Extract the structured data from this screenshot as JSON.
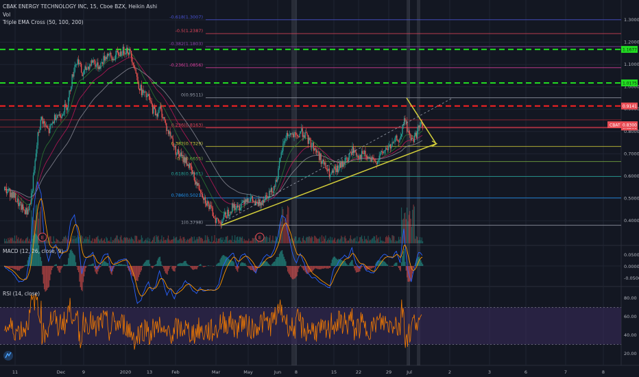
{
  "header": {
    "symbol": "CBAK ENERGY TECHNOLOGY INC, 15, Cboe BZX, Heikin Ashi",
    "vol_label": "Vol",
    "ema_label": "Triple EMA Cross (50, 100, 200)"
  },
  "colors": {
    "background": "#131722",
    "grid": "#1f2433",
    "up": "#26a69a",
    "down": "#ef5350",
    "price_tag": "#e84d55",
    "green_level": "#22dd22",
    "red_level": "#ff2222",
    "trend": "#d4cf3a",
    "macd_line": "#2962ff",
    "signal_line": "#ff9800",
    "rsi_line": "#f57c00",
    "rsi_band": "#3b2b5c"
  },
  "price_axis": {
    "ticks": [
      "1.3000",
      "1.2000",
      "1.1000",
      "1.0000",
      "0.9000",
      "0.8000",
      "0.7000",
      "0.6000",
      "0.5000",
      "0.4000"
    ],
    "current_tag": {
      "label": "CBAT",
      "value": "0.8300"
    },
    "level_tags": [
      {
        "value": "1.1677",
        "kind": "green"
      },
      {
        "value": "1.0175",
        "kind": "green"
      },
      {
        "value": "0.9141",
        "kind": "red"
      },
      {
        "value": "0.8200",
        "kind": "red"
      }
    ]
  },
  "fib_levels": [
    {
      "label": "-0.618(1.3007)",
      "color": "#4a54d6"
    },
    {
      "label": "-0.5(1.2387)",
      "color": "#e0455a"
    },
    {
      "label": "-0.382(1.1803)",
      "color": "#8e44ad"
    },
    {
      "label": "-0.236(1.0856)",
      "color": "#e040a0"
    },
    {
      "label": "0(0.9511)",
      "color": "#9aa0ac"
    },
    {
      "label": "0.236(0.8163)",
      "color": "#e0455a"
    },
    {
      "label": "0.382(0.7329)",
      "color": "#d4cf3a"
    },
    {
      "label": "0.5(0.6655)",
      "color": "#7cb342"
    },
    {
      "label": "0.618(0.5981)",
      "color": "#26a69a"
    },
    {
      "label": "0.786(0.5021)",
      "color": "#2196f3"
    },
    {
      "label": "1(0.3798)",
      "color": "#9aa0ac"
    }
  ],
  "earnings_markers": [
    "E",
    "E"
  ],
  "macd": {
    "label": "MACD (12, 26, close, 9)",
    "ticks": [
      "0.0500",
      "0.0000",
      "-0.0500"
    ]
  },
  "rsi": {
    "label": "RSI (14, close)",
    "ticks": [
      "80.00",
      "60.00",
      "40.00",
      "20.00"
    ]
  },
  "time_axis": {
    "labels": [
      "11",
      "Dec",
      "9",
      "2020",
      "13",
      "Feb",
      "Mar",
      "May",
      "Jun",
      "8",
      "15",
      "22",
      "29",
      "Jul",
      "2",
      "3",
      "6",
      "7",
      "8"
    ]
  },
  "chart_data": {
    "type": "candlestick",
    "title": "CBAK ENERGY TECHNOLOGY INC, 15, Cboe BZX, Heikin Ashi",
    "ylim": [
      0.36,
      1.33
    ],
    "price_path": [
      [
        0,
        0.54
      ],
      [
        1,
        0.53
      ],
      [
        2,
        0.52
      ],
      [
        3,
        0.5
      ],
      [
        4,
        0.47
      ],
      [
        5,
        0.45
      ],
      [
        6,
        0.44
      ],
      [
        7,
        0.48
      ],
      [
        8,
        0.62
      ],
      [
        9,
        0.78
      ],
      [
        10,
        0.86
      ],
      [
        11,
        0.82
      ],
      [
        12,
        0.8
      ],
      [
        13,
        0.84
      ],
      [
        14,
        0.88
      ],
      [
        15,
        0.87
      ],
      [
        16,
        0.9
      ],
      [
        17,
        0.92
      ],
      [
        18,
        1.02
      ],
      [
        19,
        1.1
      ],
      [
        20,
        1.12
      ],
      [
        21,
        1.05
      ],
      [
        22,
        1.08
      ],
      [
        23,
        1.1
      ],
      [
        24,
        1.12
      ],
      [
        25,
        1.09
      ],
      [
        26,
        1.1
      ],
      [
        27,
        1.13
      ],
      [
        28,
        1.15
      ],
      [
        29,
        1.12
      ],
      [
        30,
        1.14
      ],
      [
        31,
        1.15
      ],
      [
        32,
        1.16
      ],
      [
        33,
        1.17
      ],
      [
        34,
        1.15
      ],
      [
        35,
        1.1
      ],
      [
        36,
        1.02
      ],
      [
        37,
        0.98
      ],
      [
        38,
        0.96
      ],
      [
        39,
        0.95
      ],
      [
        40,
        0.9
      ],
      [
        41,
        0.88
      ],
      [
        42,
        0.9
      ],
      [
        43,
        0.86
      ],
      [
        44,
        0.8
      ],
      [
        45,
        0.78
      ],
      [
        46,
        0.72
      ],
      [
        47,
        0.7
      ],
      [
        48,
        0.68
      ],
      [
        49,
        0.67
      ],
      [
        50,
        0.64
      ],
      [
        51,
        0.6
      ],
      [
        52,
        0.56
      ],
      [
        53,
        0.54
      ],
      [
        54,
        0.5
      ],
      [
        55,
        0.47
      ],
      [
        56,
        0.44
      ],
      [
        57,
        0.41
      ],
      [
        58,
        0.39
      ],
      [
        59,
        0.41
      ],
      [
        60,
        0.43
      ],
      [
        61,
        0.45
      ],
      [
        62,
        0.47
      ],
      [
        63,
        0.45
      ],
      [
        64,
        0.48
      ],
      [
        65,
        0.5
      ],
      [
        66,
        0.5
      ],
      [
        67,
        0.49
      ],
      [
        68,
        0.47
      ],
      [
        69,
        0.48
      ],
      [
        70,
        0.5
      ],
      [
        71,
        0.52
      ],
      [
        72,
        0.53
      ],
      [
        73,
        0.56
      ],
      [
        74,
        0.62
      ],
      [
        75,
        0.72
      ],
      [
        76,
        0.78
      ],
      [
        77,
        0.79
      ],
      [
        78,
        0.78
      ],
      [
        79,
        0.77
      ],
      [
        80,
        0.8
      ],
      [
        81,
        0.79
      ],
      [
        82,
        0.76
      ],
      [
        83,
        0.74
      ],
      [
        84,
        0.72
      ],
      [
        85,
        0.69
      ],
      [
        86,
        0.66
      ],
      [
        87,
        0.63
      ],
      [
        88,
        0.6
      ],
      [
        89,
        0.62
      ],
      [
        90,
        0.63
      ],
      [
        91,
        0.65
      ],
      [
        92,
        0.67
      ],
      [
        93,
        0.68
      ],
      [
        94,
        0.72
      ],
      [
        95,
        0.7
      ],
      [
        96,
        0.69
      ],
      [
        97,
        0.7
      ],
      [
        98,
        0.68
      ],
      [
        99,
        0.67
      ],
      [
        100,
        0.66
      ],
      [
        101,
        0.68
      ],
      [
        102,
        0.7
      ],
      [
        103,
        0.72
      ],
      [
        104,
        0.73
      ],
      [
        105,
        0.74
      ],
      [
        106,
        0.77
      ],
      [
        107,
        0.76
      ],
      [
        108,
        0.86
      ],
      [
        109,
        0.8
      ],
      [
        110,
        0.76
      ],
      [
        111,
        0.78
      ],
      [
        112,
        0.82
      ],
      [
        113,
        0.83
      ]
    ],
    "indicators": [
      "Vol",
      "Triple EMA Cross (50, 100, 200)",
      "MACD (12, 26, close, 9)",
      "RSI (14, close)"
    ]
  }
}
